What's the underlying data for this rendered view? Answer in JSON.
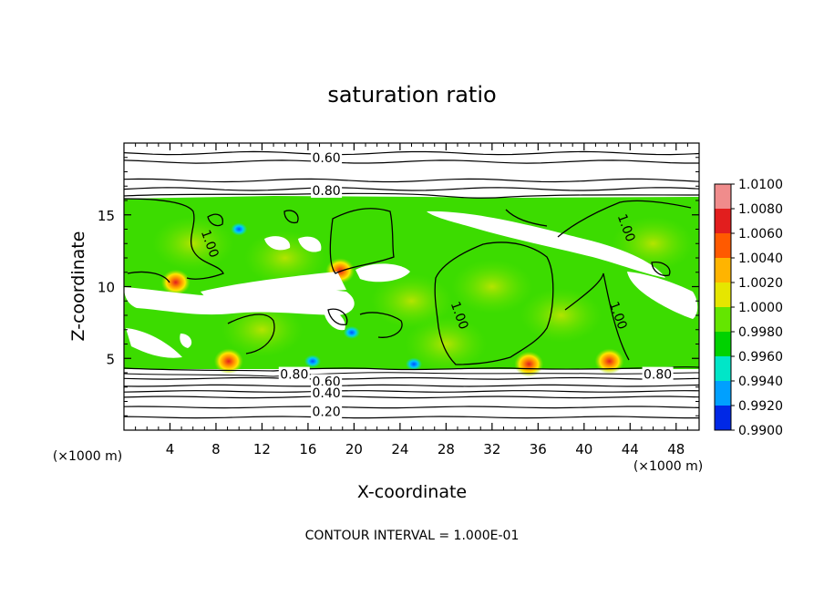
{
  "chart_data": {
    "type": "heatmap",
    "title": "saturation ratio",
    "xlabel": "X-coordinate",
    "ylabel": "Z-coordinate",
    "x_unit_label": "(×1000 m)",
    "z_unit_label": "(×1000 m)",
    "xlim": [
      0,
      50
    ],
    "ylim": [
      0,
      20
    ],
    "xticks": [
      "4",
      "8",
      "12",
      "16",
      "20",
      "24",
      "28",
      "32",
      "36",
      "40",
      "44",
      "48"
    ],
    "xtick_values": [
      4,
      8,
      12,
      16,
      20,
      24,
      28,
      32,
      36,
      40,
      44,
      48
    ],
    "yticks": [
      "5",
      "10",
      "15"
    ],
    "ytick_values": [
      5,
      10,
      15
    ],
    "footer": "CONTOUR INTERVAL = 1.000E-01",
    "colorbar": {
      "labels": [
        "1.0100",
        "1.0080",
        "1.0060",
        "1.0040",
        "1.0020",
        "1.0000",
        "0.9980",
        "0.9960",
        "0.9940",
        "0.9920",
        "0.9900"
      ],
      "colors": [
        "#f08c8c",
        "#e21e1e",
        "#ff5a00",
        "#ffb400",
        "#e6e600",
        "#64e600",
        "#00d200",
        "#00e6c8",
        "#00a0ff",
        "#0028e6",
        "#6e00a0"
      ]
    },
    "contour_labels": [
      {
        "text": "0.60",
        "x": 17.6,
        "z": 19.0
      },
      {
        "text": "0.80",
        "x": 17.6,
        "z": 16.7
      },
      {
        "text": "0.80",
        "x": 14.8,
        "z": 3.9
      },
      {
        "text": "0.60",
        "x": 17.6,
        "z": 3.4
      },
      {
        "text": "0.40",
        "x": 17.6,
        "z": 2.6
      },
      {
        "text": "0.20",
        "x": 17.6,
        "z": 1.3
      },
      {
        "text": "0.80",
        "x": 46.4,
        "z": 3.9
      },
      {
        "text": "1.00",
        "x": 7.5,
        "z": 13.0
      },
      {
        "text": "1.00",
        "x": 29.2,
        "z": 8.0
      },
      {
        "text": "1.00",
        "x": 43.0,
        "z": 8.0
      },
      {
        "text": "1.00",
        "x": 43.7,
        "z": 14.1
      }
    ],
    "cloud_top_z": 16.1,
    "cloud_base_z": 4.5,
    "warm_spots": [
      {
        "x": 4.5,
        "z": 10.3,
        "color": "#ff5a00"
      },
      {
        "x": 9.1,
        "z": 4.8,
        "color": "#ff5a00"
      },
      {
        "x": 18.8,
        "z": 11.1,
        "color": "#ffb400"
      },
      {
        "x": 35.2,
        "z": 4.6,
        "color": "#ff5a00"
      },
      {
        "x": 42.2,
        "z": 4.8,
        "color": "#e21e1e"
      }
    ],
    "cold_spots": [
      {
        "x": 10.0,
        "z": 14.0,
        "color": "#00a0ff"
      },
      {
        "x": 16.4,
        "z": 4.8,
        "color": "#0028e6"
      },
      {
        "x": 19.8,
        "z": 6.8,
        "color": "#00a0ff"
      },
      {
        "x": 25.2,
        "z": 4.6,
        "color": "#00e6c8"
      }
    ],
    "isolines_below": [
      3.6,
      3.1,
      2.7,
      2.3,
      1.6,
      0.9
    ],
    "isolines_above": [
      16.8,
      17.4,
      18.7,
      19.3
    ]
  }
}
